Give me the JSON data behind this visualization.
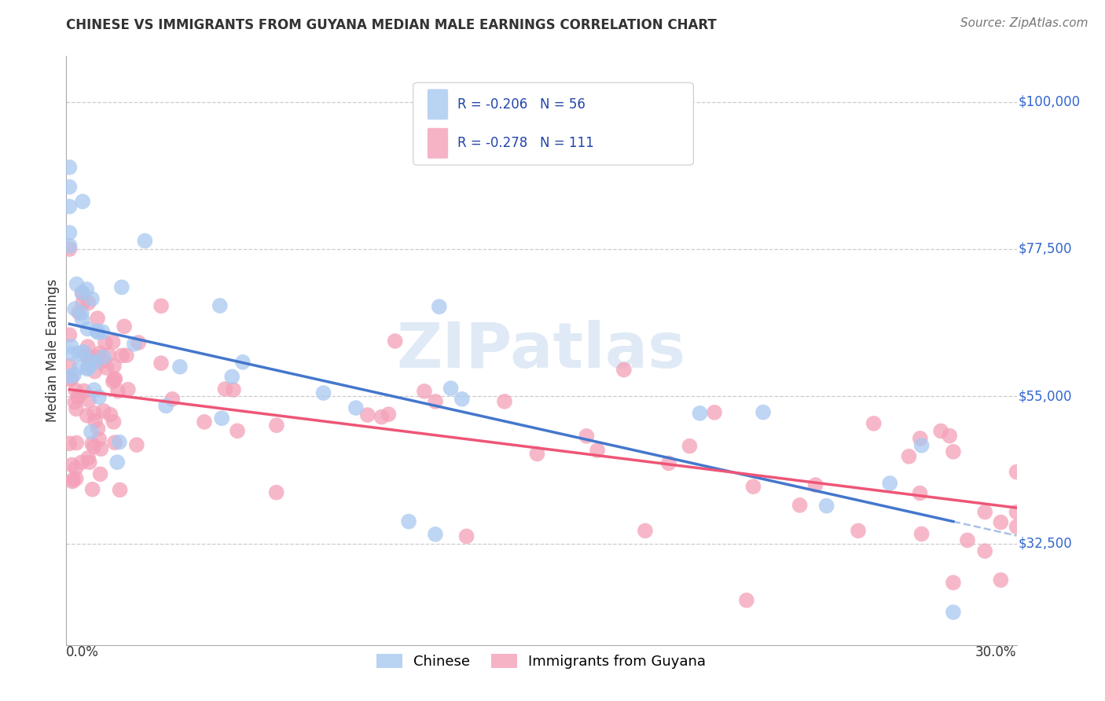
{
  "title": "CHINESE VS IMMIGRANTS FROM GUYANA MEDIAN MALE EARNINGS CORRELATION CHART",
  "source": "Source: ZipAtlas.com",
  "ylabel": "Median Male Earnings",
  "ytick_labels": [
    "$32,500",
    "$55,000",
    "$77,500",
    "$100,000"
  ],
  "ytick_values": [
    32500,
    55000,
    77500,
    100000
  ],
  "ylim": [
    17000,
    107000
  ],
  "xlim": [
    0.0,
    0.3
  ],
  "legend_blue_r": "R = -0.206",
  "legend_blue_n": "N = 56",
  "legend_pink_r": "R = -0.278",
  "legend_pink_n": "N = 111",
  "watermark": "ZIPatlas",
  "blue_color": "#A8C8F0",
  "pink_color": "#F4A0B8",
  "blue_line_color": "#4477CC",
  "pink_line_color": "#EE5577",
  "title_fontsize": 12,
  "label_fontsize": 12,
  "tick_fontsize": 12
}
